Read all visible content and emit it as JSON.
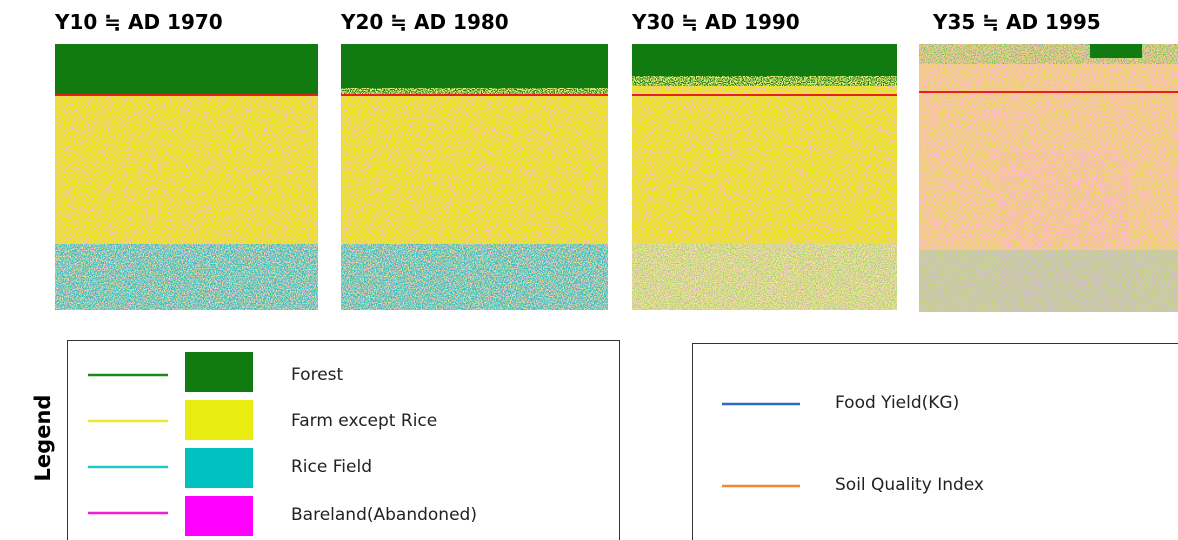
{
  "panels": [
    {
      "title": "Y10 ≒ AD 1970"
    },
    {
      "title": "Y20 ≒ AD 1980"
    },
    {
      "title": "Y30 ≒ AD 1990"
    },
    {
      "title": "Y35 ≒ AD 1995"
    }
  ],
  "legend": {
    "title": "Legend",
    "items": [
      {
        "label": "Forest"
      },
      {
        "label": "Farm except Rice"
      },
      {
        "label": "Rice Field"
      },
      {
        "label": "Bareland(Abandoned)"
      }
    ]
  },
  "legend2": {
    "items": [
      {
        "label": "Food Yield(KG)"
      },
      {
        "label": "Soil Quality Index"
      }
    ]
  }
}
